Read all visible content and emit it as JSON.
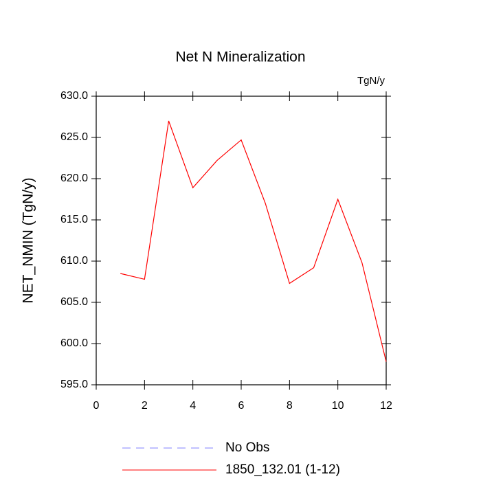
{
  "chart_data": {
    "type": "line",
    "title": "Net N Mineralization",
    "units": "TgN/y",
    "y_label": "NET_NMIN  (TgN/y)",
    "x": [
      1,
      2,
      3,
      4,
      5,
      6,
      7,
      8,
      9,
      10,
      11,
      12
    ],
    "series": [
      {
        "name": "No Obs",
        "color": "#8080ff",
        "dashed": true,
        "values": [
          null,
          null,
          null,
          null,
          null,
          null,
          null,
          null,
          null,
          null,
          null,
          null
        ]
      },
      {
        "name": "1850_132.01 (1-12)",
        "color": "#ff0000",
        "dashed": false,
        "values": [
          608.5,
          607.8,
          627.0,
          618.9,
          622.2,
          624.7,
          617.0,
          607.3,
          609.2,
          617.5,
          609.8,
          597.8
        ]
      }
    ],
    "xlim": [
      0,
      12
    ],
    "xticks": [
      0,
      2,
      4,
      6,
      8,
      10,
      12
    ],
    "ylim": [
      595,
      630
    ],
    "yticks": [
      {
        "value": 595,
        "label": "595.0"
      },
      {
        "value": 600,
        "label": "600.0"
      },
      {
        "value": 605,
        "label": "605.0"
      },
      {
        "value": 610,
        "label": "610.0"
      },
      {
        "value": 615,
        "label": "615.0"
      },
      {
        "value": 620,
        "label": "620.0"
      },
      {
        "value": 625,
        "label": "625.0"
      },
      {
        "value": 630,
        "label": "630.0"
      }
    ]
  }
}
